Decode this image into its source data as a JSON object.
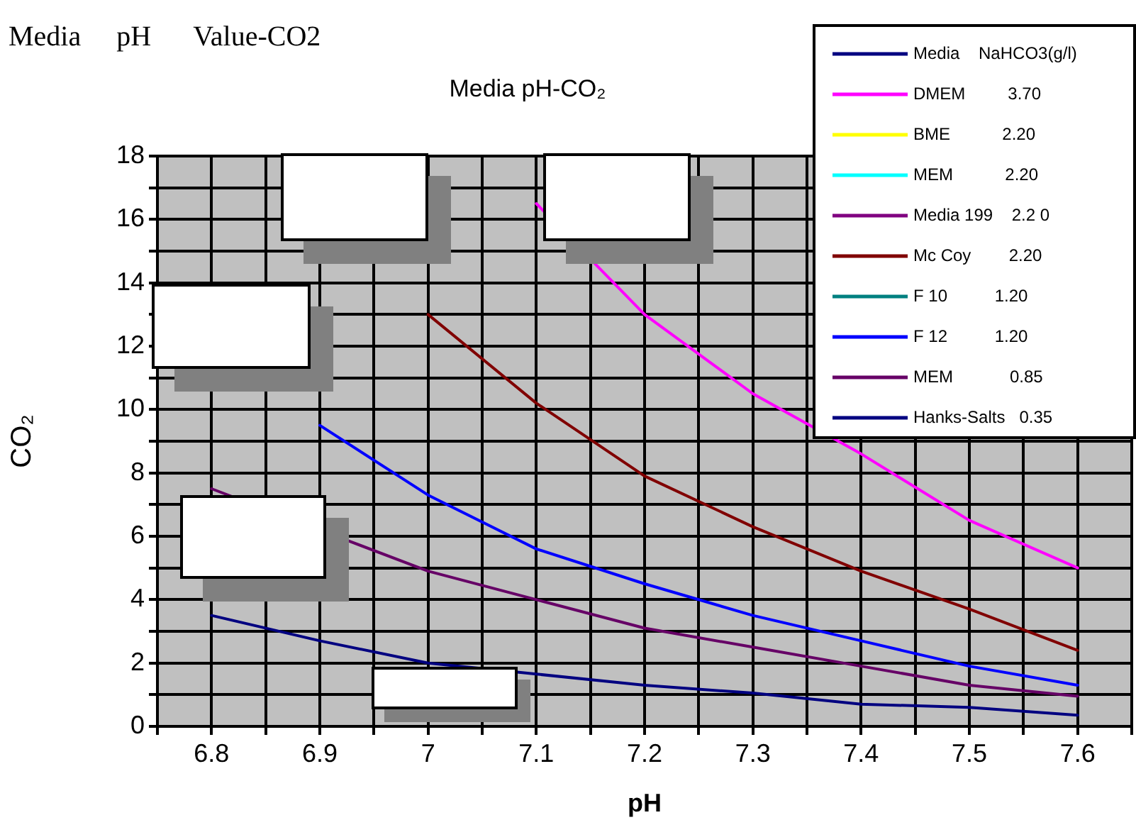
{
  "chart_data": {
    "type": "line",
    "title": "Media pH-CO₂",
    "xlabel": "pH",
    "ylabel": "CO₂",
    "annotations": [
      "Media     pH      Value-CO2"
    ],
    "x": [
      6.8,
      6.9,
      7.0,
      7.1,
      7.2,
      7.3,
      7.4,
      7.5,
      7.6
    ],
    "xlim": [
      6.75,
      7.65
    ],
    "xticks": [
      {
        "value": 6.75,
        "label": null
      },
      6.8,
      {
        "value": 6.85,
        "label": null
      },
      6.9,
      {
        "value": 6.95,
        "label": null
      },
      7,
      {
        "value": 7.05,
        "label": null
      },
      7.1,
      {
        "value": 7.15,
        "label": null
      },
      7.2,
      {
        "value": 7.25,
        "label": null
      },
      7.3,
      {
        "value": 7.35,
        "label": null
      },
      7.4,
      {
        "value": 7.45,
        "label": null
      },
      7.5,
      {
        "value": 7.55,
        "label": null
      },
      7.6,
      {
        "value": 7.65,
        "label": null
      }
    ],
    "ylim": [
      0,
      18
    ],
    "yticks": [
      0,
      {
        "value": 1,
        "label": null
      },
      2,
      {
        "value": 3,
        "label": null
      },
      4,
      {
        "value": 5,
        "label": null
      },
      6,
      {
        "value": 7,
        "label": null
      },
      8,
      {
        "value": 9,
        "label": null
      },
      10,
      {
        "value": 11,
        "label": null
      },
      12,
      {
        "value": 13,
        "label": null
      },
      14,
      {
        "value": 15,
        "label": null
      },
      16,
      {
        "value": 17,
        "label": null
      },
      18
    ],
    "grid": true,
    "legend": "top right",
    "marker": "none",
    "line_style": "solid",
    "series": [
      {
        "name": "Media    NaHCO3(g/l)",
        "color": "#000080",
        "values": [
          null,
          null,
          null,
          null,
          null,
          null,
          null,
          null,
          null
        ]
      },
      {
        "name": "DMEM         3.70",
        "color": "#ff00ff",
        "values": [
          null,
          null,
          null,
          16.5,
          13.0,
          10.5,
          8.6,
          6.5,
          5.0
        ]
      },
      {
        "name": "BME           2.20",
        "color": "#ffff00",
        "values": [
          null,
          null,
          null,
          null,
          null,
          null,
          null,
          null,
          null
        ]
      },
      {
        "name": "MEM           2.20",
        "color": "#00ffff",
        "values": [
          null,
          null,
          null,
          null,
          null,
          null,
          null,
          null,
          null
        ]
      },
      {
        "name": "Media 199    2.2 0",
        "color": "#800080",
        "values": [
          null,
          null,
          null,
          null,
          null,
          null,
          null,
          null,
          null
        ]
      },
      {
        "name": "Mc Coy        2.20",
        "color": "#800000",
        "values": [
          null,
          null,
          13.0,
          10.2,
          7.9,
          6.3,
          4.9,
          3.7,
          2.4
        ]
      },
      {
        "name": "F 10          1.20",
        "color": "#008080",
        "values": [
          null,
          null,
          null,
          null,
          null,
          null,
          null,
          null,
          null
        ]
      },
      {
        "name": "F 12          1.20",
        "color": "#0000ff",
        "values": [
          null,
          9.5,
          7.3,
          5.6,
          4.5,
          3.5,
          2.7,
          1.9,
          1.3
        ]
      },
      {
        "name": "MEM            0.85",
        "color": "#660066",
        "values": [
          7.5,
          null,
          4.9,
          4.0,
          3.1,
          2.5,
          1.9,
          1.3,
          0.95
        ]
      },
      {
        "name": "Hanks-Salts   0.35",
        "color": "#000080",
        "values": [
          3.5,
          2.7,
          2.0,
          1.65,
          1.3,
          1.05,
          0.7,
          0.6,
          0.35
        ]
      }
    ]
  }
}
